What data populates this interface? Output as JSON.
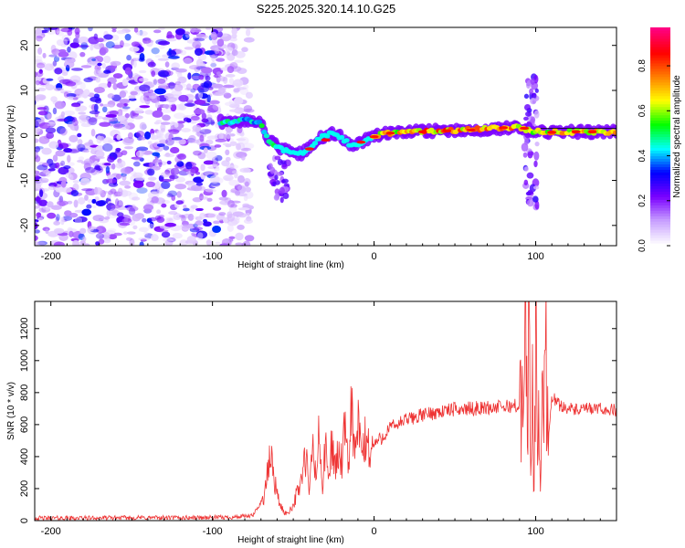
{
  "title": "S225.2025.320.14.10.G25",
  "chart_data": [
    {
      "type": "heatmap",
      "name": "spectrogram",
      "xlabel": "Height of straight line (km)",
      "ylabel": "Frequency (Hz)",
      "xlim": [
        -210,
        150
      ],
      "ylim": [
        -24.5,
        24
      ],
      "xticks": [
        -200,
        -100,
        0,
        100
      ],
      "yticks": [
        -20,
        -10,
        0,
        10,
        20
      ],
      "colorbar": {
        "label": "Normalized spectral amplitude",
        "range": [
          0,
          1
        ],
        "ticks": [
          0.0,
          0.2,
          0.4,
          0.6,
          0.8
        ],
        "tick_labels": [
          "0.0",
          "0.2",
          "0.4",
          "0.6",
          "0.8"
        ],
        "colors": [
          "#ffffff",
          "#c8a0ff",
          "#7a00ff",
          "#0000ff",
          "#00ffff",
          "#00ff00",
          "#ffff00",
          "#ff8000",
          "#ff0000",
          "#ff0080"
        ]
      },
      "track": {
        "x": [
          -95,
          -85,
          -78,
          -70,
          -65,
          -58,
          -50,
          -45,
          -40,
          -35,
          -30,
          -25,
          -20,
          -15,
          -10,
          -5,
          0,
          10,
          20,
          40,
          60,
          80,
          88,
          92,
          98,
          105,
          120,
          150
        ],
        "y": [
          3,
          3,
          3.5,
          2.5,
          -1,
          -3,
          -4,
          -4,
          -3,
          -1,
          0,
          0.5,
          -0.5,
          -2,
          -2,
          -1,
          0,
          0.5,
          0.8,
          1,
          1.3,
          1.6,
          2,
          1.5,
          1,
          0.8,
          0.8,
          0.8
        ]
      }
    },
    {
      "type": "line",
      "name": "snr",
      "xlabel": "Height of straight line (km)",
      "ylabel": "SNR (10 * v/v)",
      "xlim": [
        -210,
        150
      ],
      "ylim": [
        0,
        1370
      ],
      "xticks": [
        -200,
        -100,
        0,
        100
      ],
      "yticks": [
        0,
        200,
        400,
        600,
        800,
        1000,
        1200
      ],
      "series": [
        {
          "name": "SNR",
          "color": "#ee3333",
          "x": [
            -210,
            -180,
            -150,
            -120,
            -90,
            -75,
            -68,
            -64,
            -60,
            -57,
            -54,
            -50,
            -46,
            -42,
            -40,
            -38,
            -36,
            -34,
            -32,
            -30,
            -28,
            -26,
            -24,
            -22,
            -20,
            -18,
            -16,
            -14,
            -12,
            -10,
            -8,
            -5,
            -2,
            0,
            5,
            10,
            20,
            30,
            40,
            50,
            60,
            70,
            80,
            88,
            92,
            94,
            95,
            96,
            97,
            98,
            99,
            100,
            101,
            102,
            103,
            104,
            105,
            106,
            108,
            110,
            115,
            125,
            135,
            150
          ],
          "y": [
            15,
            16,
            18,
            18,
            20,
            30,
            150,
            410,
            160,
            70,
            40,
            100,
            220,
            400,
            150,
            500,
            250,
            540,
            200,
            460,
            240,
            520,
            300,
            440,
            350,
            560,
            300,
            760,
            380,
            600,
            420,
            500,
            430,
            480,
            520,
            580,
            630,
            660,
            680,
            695,
            700,
            705,
            710,
            720,
            680,
            1100,
            700,
            1380,
            200,
            900,
            80,
            1320,
            300,
            800,
            100,
            1100,
            450,
            1200,
            520,
            780,
            720,
            690,
            700,
            690
          ]
        }
      ]
    }
  ]
}
